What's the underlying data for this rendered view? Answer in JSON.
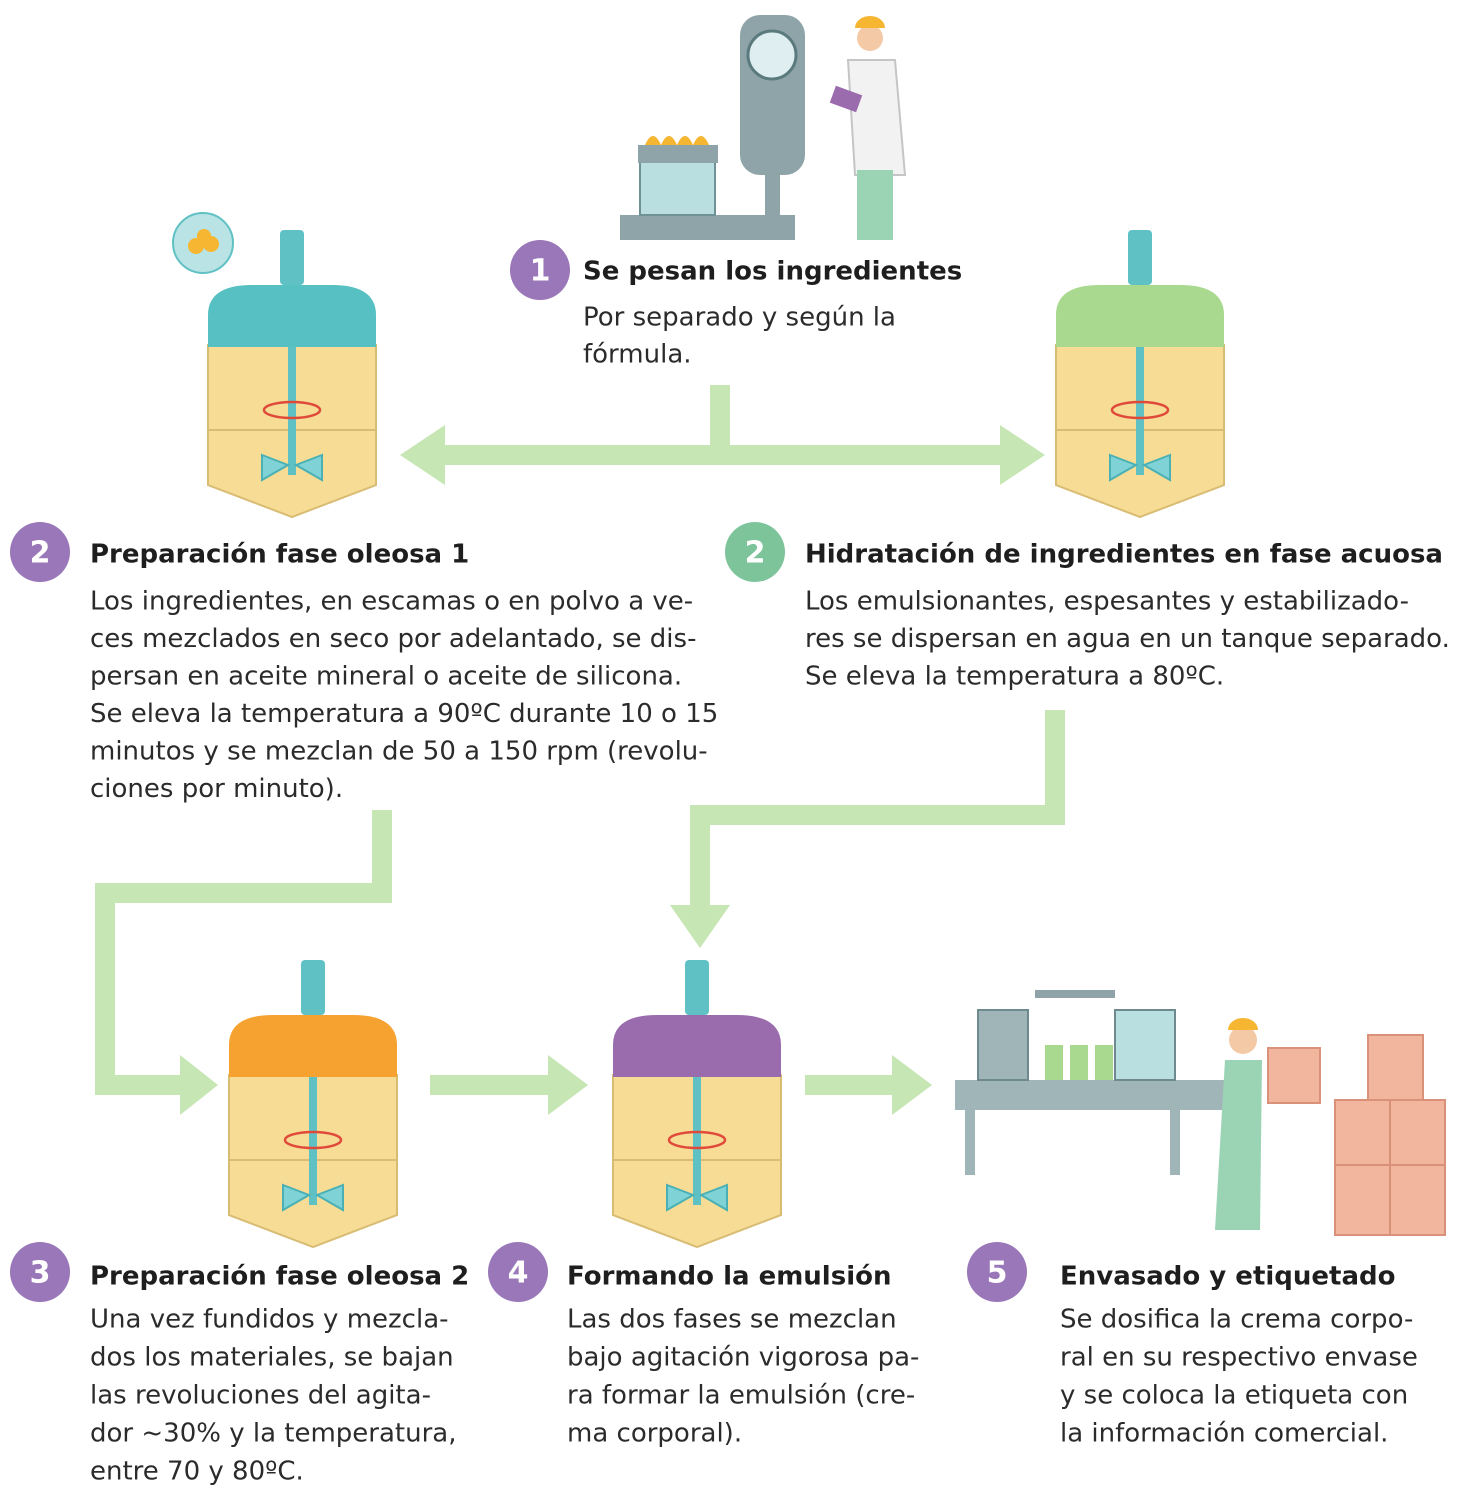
{
  "steps": [
    {
      "number": "1",
      "title": "Se pesan los ingredientes",
      "lines": [
        "Por separado y según la",
        "fórmula."
      ]
    },
    {
      "number": "2",
      "title": "Preparación fase oleosa 1",
      "lines": [
        "Los ingredientes, en escamas o en polvo a ve-",
        "ces mezclados en seco por adelantado, se dis-",
        "persan en aceite mineral o aceite de silicona.",
        "Se eleva la temperatura a 90ºC durante 10 o 15",
        "minutos y se mezclan de 50 a 150 rpm (revolu-",
        "ciones por minuto)."
      ]
    },
    {
      "number": "2",
      "title": "Hidratación de ingredientes en fase acuosa",
      "lines": [
        "Los emulsionantes, espesantes y estabilizado-",
        "res se dispersan en agua en un tanque separado.",
        "Se eleva la temperatura a 80ºC."
      ]
    },
    {
      "number": "3",
      "title": "Preparación fase oleosa 2",
      "lines": [
        "Una vez fundidos y mezcla-",
        "dos los materiales, se bajan",
        "las revoluciones del agita-",
        "dor ~30% y la temperatura,",
        "entre 70 y 80ºC."
      ]
    },
    {
      "number": "4",
      "title": "Formando la emulsión",
      "lines": [
        "Las dos fases se mezclan",
        "bajo agitación vigorosa pa-",
        "ra formar la emulsión (cre-",
        "ma corporal)."
      ]
    },
    {
      "number": "5",
      "title": "Envasado y etiquetado",
      "lines": [
        "Se dosifica la crema corpo-",
        "ral en su respectivo envase",
        "y se coloca la etiqueta con",
        "la información comercial."
      ]
    }
  ]
}
